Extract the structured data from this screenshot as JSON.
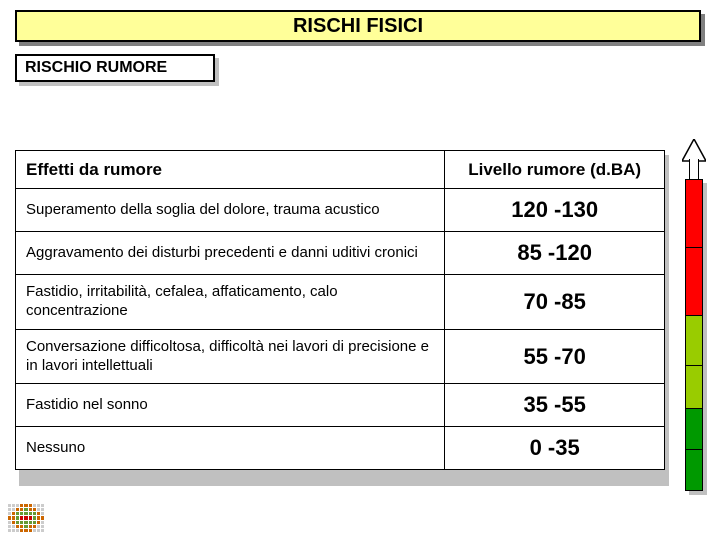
{
  "title": "RISCHI FISICI",
  "subtitle": "RISCHIO RUMORE",
  "table": {
    "headers": {
      "effect": "Effetti da rumore",
      "level": "Livello rumore (d.BA)"
    },
    "rows": [
      {
        "effect": "Superamento della soglia del dolore, trauma acustico",
        "level": "120 -130"
      },
      {
        "effect": "Aggravamento dei disturbi precedenti e danni uditivi cronici",
        "level": "85 -120"
      },
      {
        "effect": "Fastidio, irritabilità, cefalea, affaticamento, calo concentrazione",
        "level": "70 -85"
      },
      {
        "effect": "Conversazione difficoltosa, difficoltà nei lavori di precisione e in lavori intellettuali",
        "level": "55 -70"
      },
      {
        "effect": "Fastidio nel sonno",
        "level": "35 -55"
      },
      {
        "effect": "Nessuno",
        "level": "0 -35"
      }
    ]
  },
  "gauge": {
    "segments": [
      {
        "color": "#ff0000",
        "flex": 22
      },
      {
        "color": "#ff0000",
        "flex": 22
      },
      {
        "color": "#99cc00",
        "flex": 16
      },
      {
        "color": "#99cc00",
        "flex": 14
      },
      {
        "color": "#009900",
        "flex": 13
      },
      {
        "color": "#009900",
        "flex": 13
      }
    ]
  },
  "logo_dots": [
    "#cccccc",
    "#cccccc",
    "#cccccc",
    "#cc6600",
    "#cc6600",
    "#cc6600",
    "#cccccc",
    "#cccccc",
    "#cccccc",
    "#cccccc",
    "#cccccc",
    "#cc6600",
    "#cc6600",
    "#669933",
    "#cc6600",
    "#cc6600",
    "#cccccc",
    "#cccccc",
    "#cccccc",
    "#cc6600",
    "#669933",
    "#669933",
    "#669933",
    "#669933",
    "#669933",
    "#cc6600",
    "#cccccc",
    "#cc6600",
    "#cc6600",
    "#669933",
    "#cc0000",
    "#cc0000",
    "#cc0000",
    "#669933",
    "#cc6600",
    "#cc6600",
    "#cccccc",
    "#cc6600",
    "#669933",
    "#669933",
    "#669933",
    "#669933",
    "#669933",
    "#cc6600",
    "#cccccc",
    "#cccccc",
    "#cccccc",
    "#cc6600",
    "#cc6600",
    "#669933",
    "#cc6600",
    "#cc6600",
    "#cccccc",
    "#cccccc",
    "#cccccc",
    "#cccccc",
    "#cccccc",
    "#cc6600",
    "#cc6600",
    "#cc6600",
    "#cccccc",
    "#cccccc",
    "#cccccc"
  ]
}
